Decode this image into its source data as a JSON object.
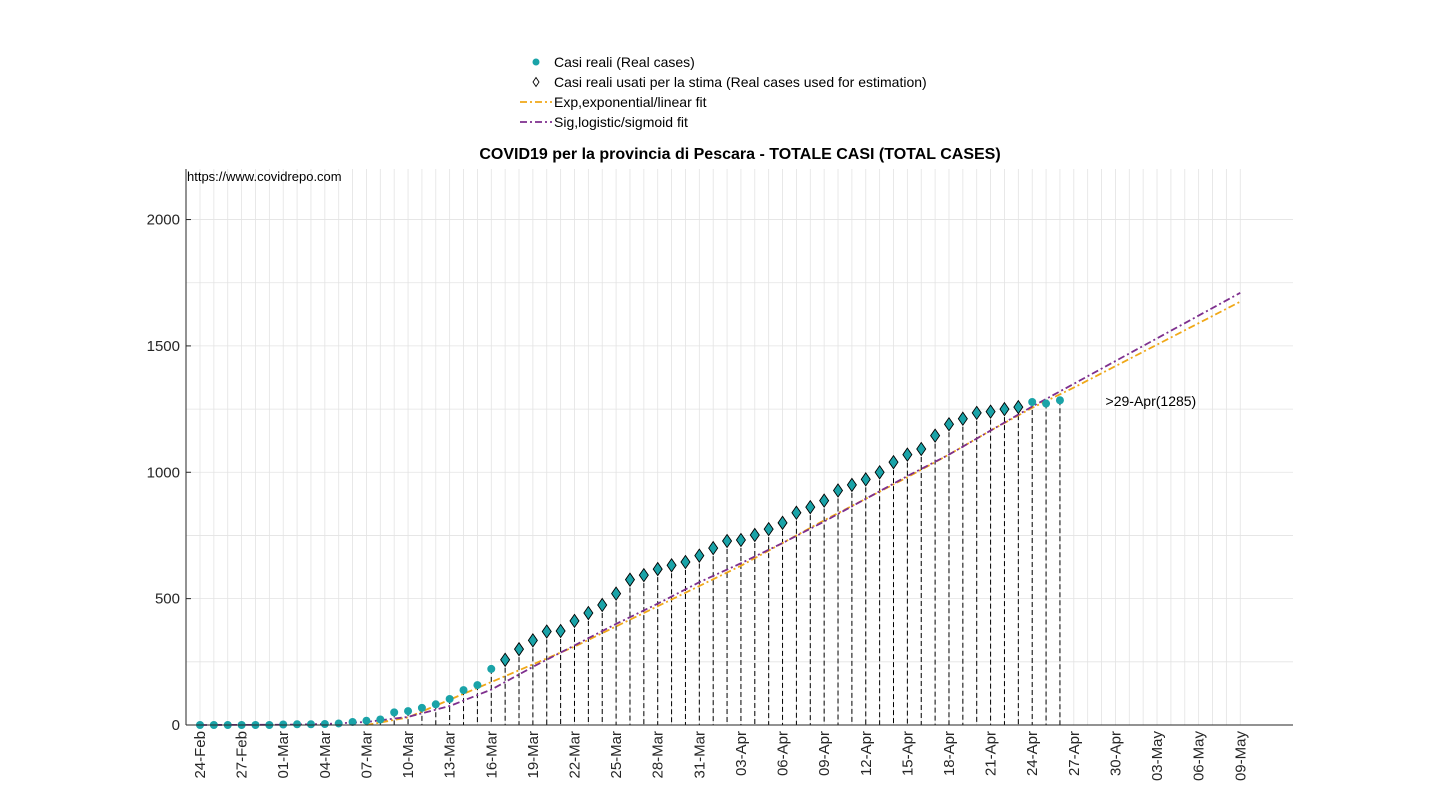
{
  "watermark": "https://www.covidrepo.com",
  "legend": [
    {
      "label": "Casi reali (Real cases)",
      "marker": "circle"
    },
    {
      "label": "Casi reali usati per la stima (Real cases used for estimation)",
      "marker": "diamond"
    },
    {
      "label": "Exp,exponential/linear fit",
      "marker": "dashdot-orange"
    },
    {
      "label": "Sig,logistic/sigmoid fit",
      "marker": "dashdot-purple"
    }
  ],
  "colors": {
    "real_cases": "#1aa3a8",
    "exp_fit": "#f0a818",
    "sig_fit": "#7e2f8e",
    "grid": "#e3e3e3"
  },
  "chart_data": {
    "type": "scatter",
    "title": "COVID19 per la provincia di Pescara - TOTALE CASI (TOTAL CASES)",
    "xlabel": "",
    "ylabel": "",
    "ylim": [
      0,
      2200
    ],
    "yticks": [
      0,
      500,
      1000,
      1500,
      2000
    ],
    "x_start": "24-Feb",
    "xticks": [
      "24-Feb",
      "27-Feb",
      "01-Mar",
      "04-Mar",
      "07-Mar",
      "10-Mar",
      "13-Mar",
      "16-Mar",
      "19-Mar",
      "22-Mar",
      "25-Mar",
      "28-Mar",
      "31-Mar",
      "03-Apr",
      "06-Apr",
      "09-Apr",
      "12-Apr",
      "15-Apr",
      "18-Apr",
      "21-Apr",
      "24-Apr",
      "27-Apr",
      "30-Apr",
      "03-May",
      "06-May",
      "09-May"
    ],
    "grid": true,
    "legend_position": "top",
    "series": [
      {
        "name": "Casi reali (Real cases)",
        "start": "24-Feb",
        "values": [
          0,
          0,
          0,
          0,
          0,
          0,
          2,
          3,
          3,
          4,
          6,
          12,
          17,
          22,
          50,
          55,
          68,
          82,
          103,
          138,
          158,
          222,
          258,
          300,
          335,
          370,
          372,
          412,
          443,
          475,
          520,
          575,
          593,
          617,
          632,
          645,
          670,
          700,
          728,
          732,
          752,
          775,
          800,
          840,
          862,
          888,
          928,
          950,
          972,
          1000,
          1040,
          1070,
          1092,
          1145,
          1190,
          1212,
          1235,
          1240,
          1250,
          1258,
          1278,
          1272,
          1285
        ]
      },
      {
        "name": "Casi reali usati per la stima (Real cases used for estimation)",
        "start": "24-Feb",
        "values": [
          null,
          null,
          null,
          null,
          null,
          null,
          null,
          null,
          null,
          null,
          null,
          null,
          null,
          null,
          null,
          null,
          null,
          null,
          null,
          null,
          null,
          null,
          258,
          300,
          335,
          370,
          372,
          412,
          443,
          475,
          520,
          575,
          593,
          617,
          632,
          645,
          670,
          700,
          728,
          732,
          752,
          775,
          800,
          840,
          862,
          888,
          928,
          950,
          972,
          1000,
          1040,
          1070,
          1092,
          1145,
          1190,
          1212,
          1235,
          1240,
          1250,
          1258,
          null,
          null,
          null
        ]
      },
      {
        "name": "Exp,exponential/linear fit",
        "x": [
          "07-Mar",
          "10-Mar",
          "13-Mar",
          "16-Mar",
          "19-Mar",
          "22-Mar",
          "25-Mar",
          "28-Mar",
          "31-Mar",
          "03-Apr",
          "06-Apr",
          "09-Apr",
          "12-Apr",
          "15-Apr",
          "18-Apr",
          "21-Apr",
          "24-Apr",
          "27-Apr",
          "30-Apr",
          "03-May",
          "06-May",
          "09-May"
        ],
        "values": [
          0,
          30,
          100,
          170,
          240,
          310,
          390,
          470,
          550,
          630,
          720,
          810,
          895,
          980,
          1070,
          1165,
          1255,
          1335,
          1420,
          1505,
          1590,
          1675
        ]
      },
      {
        "name": "Sig,logistic/sigmoid fit",
        "x": [
          "24-Feb",
          "01-Mar",
          "04-Mar",
          "07-Mar",
          "10-Mar",
          "13-Mar",
          "16-Mar",
          "19-Mar",
          "22-Mar",
          "25-Mar",
          "28-Mar",
          "31-Mar",
          "03-Apr",
          "06-Apr",
          "09-Apr",
          "12-Apr",
          "15-Apr",
          "18-Apr",
          "21-Apr",
          "24-Apr",
          "27-Apr",
          "30-Apr",
          "03-May",
          "06-May",
          "09-May"
        ],
        "values": [
          0,
          1,
          4,
          12,
          32,
          75,
          140,
          230,
          315,
          400,
          480,
          565,
          640,
          720,
          805,
          895,
          985,
          1070,
          1165,
          1260,
          1350,
          1440,
          1530,
          1620,
          1710
        ]
      }
    ],
    "annotations": [
      {
        "text": ">29-Apr(1285)",
        "x": "29-Apr",
        "y": 1285
      }
    ]
  }
}
